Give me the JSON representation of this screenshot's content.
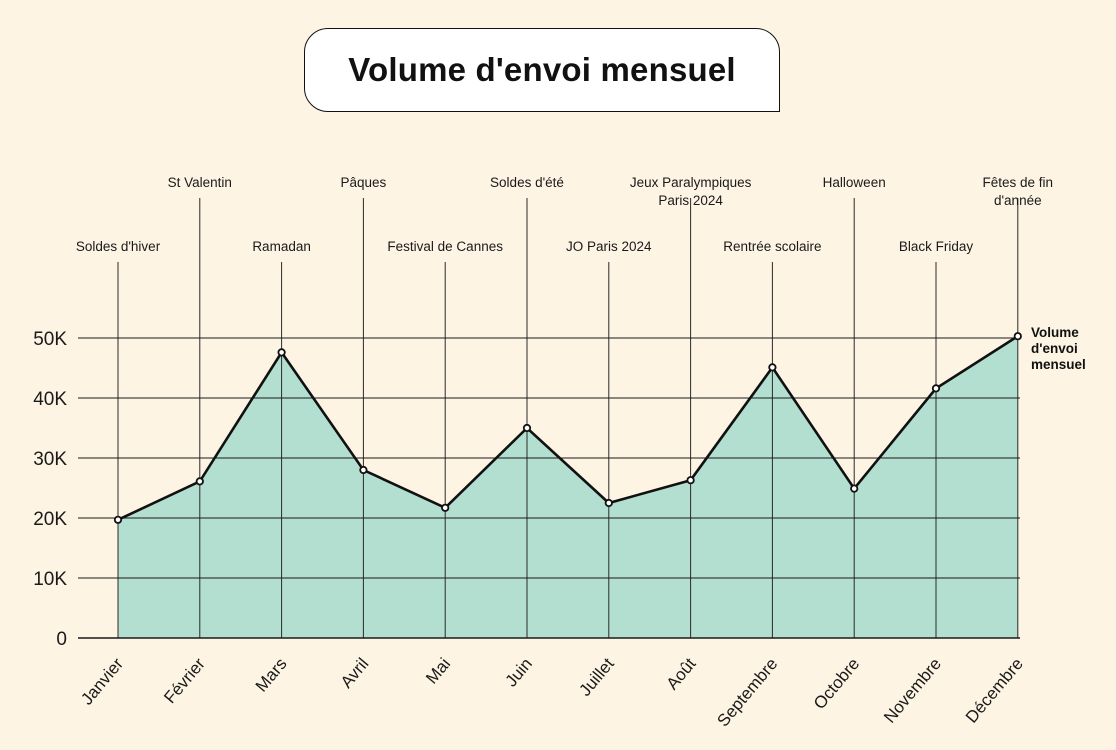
{
  "chart_data": {
    "type": "area",
    "title": "Volume d'envoi mensuel",
    "xlabel": "",
    "ylabel": "",
    "ylim": [
      0,
      50000
    ],
    "y_ticks": [
      {
        "value": 0,
        "label": "0"
      },
      {
        "value": 10000,
        "label": "10K"
      },
      {
        "value": 20000,
        "label": "20K"
      },
      {
        "value": 30000,
        "label": "30K"
      },
      {
        "value": 40000,
        "label": "40K"
      },
      {
        "value": 50000,
        "label": "50K"
      }
    ],
    "categories": [
      "Janvier",
      "Février",
      "Mars",
      "Avril",
      "Mai",
      "Juin",
      "Juillet",
      "Août",
      "Septembre",
      "Octobre",
      "Novembre",
      "Décembre"
    ],
    "series": [
      {
        "name": "Volume d'envoi mensuel",
        "values": [
          19700,
          26100,
          47600,
          28000,
          21700,
          35000,
          22500,
          26300,
          45100,
          24900,
          41600,
          50300
        ]
      }
    ],
    "legend_lines": [
      "Volume",
      "d'envoi",
      "mensuel"
    ],
    "events": [
      {
        "month_index": 0,
        "lines": [
          "Soldes d'hiver"
        ],
        "level": "low"
      },
      {
        "month_index": 1,
        "lines": [
          "St Valentin"
        ],
        "level": "high"
      },
      {
        "month_index": 2,
        "lines": [
          "Ramadan"
        ],
        "level": "low"
      },
      {
        "month_index": 3,
        "lines": [
          "Pâques"
        ],
        "level": "high"
      },
      {
        "month_index": 4,
        "lines": [
          "Festival de Cannes"
        ],
        "level": "low"
      },
      {
        "month_index": 5,
        "lines": [
          "Soldes d'été"
        ],
        "level": "high"
      },
      {
        "month_index": 6,
        "lines": [
          "JO Paris 2024"
        ],
        "level": "low"
      },
      {
        "month_index": 7,
        "lines": [
          "Jeux Paralympiques",
          "Paris 2024"
        ],
        "level": "high"
      },
      {
        "month_index": 8,
        "lines": [
          "Rentrée scolaire"
        ],
        "level": "low"
      },
      {
        "month_index": 9,
        "lines": [
          "Halloween"
        ],
        "level": "high"
      },
      {
        "month_index": 10,
        "lines": [
          "Black Friday"
        ],
        "level": "low"
      },
      {
        "month_index": 11,
        "lines": [
          "Fêtes de fin",
          "d'année"
        ],
        "level": "high"
      }
    ],
    "colors": {
      "fill": "#b3dfd0",
      "line": "#111111",
      "grid": "#1a1a1a",
      "background": "#fdf4e3"
    }
  }
}
